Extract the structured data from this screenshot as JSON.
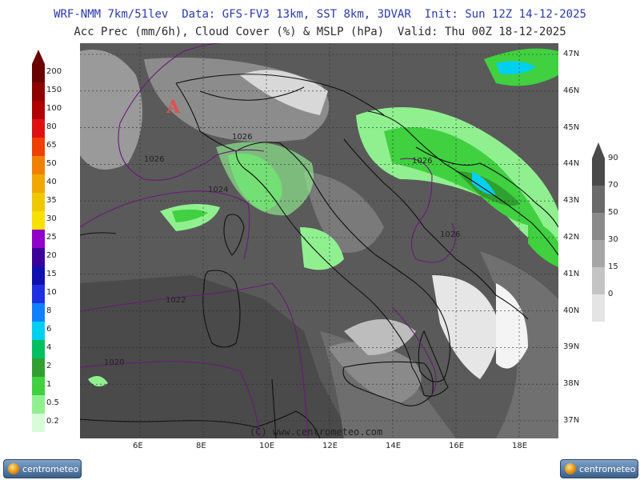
{
  "header": {
    "line1": "WRF-NMM 7km/51lev  Data: GFS-FV3 13km, SST 8km, 3DVAR  Init: Sun 12Z 14-12-2025",
    "line2": "Acc Prec (mm/6h), Cloud Cover (%) & MSLP (hPa)  Valid: Thu 00Z 18-12-2025"
  },
  "map": {
    "lat_labels": [
      "47N",
      "46N",
      "45N",
      "44N",
      "43N",
      "42N",
      "41N",
      "40N",
      "39N",
      "38N",
      "37N"
    ],
    "lon_labels": [
      "6E",
      "8E",
      "10E",
      "12E",
      "14E",
      "16E",
      "18E"
    ],
    "isobars": [
      "1026",
      "1026",
      "1024",
      "1022",
      "1020",
      "1026",
      "1026"
    ],
    "high_marker": "A",
    "credit": "(C) www.centrometeo.com"
  },
  "precip_scale": {
    "ticks": [
      "200",
      "150",
      "100",
      "80",
      "65",
      "50",
      "40",
      "35",
      "30",
      "25",
      "20",
      "15",
      "10",
      "8",
      "6",
      "4",
      "2",
      "1",
      "0.5",
      "0.2"
    ],
    "colors": [
      "#6a0000",
      "#8e0000",
      "#b00000",
      "#e01010",
      "#f04000",
      "#f08000",
      "#f0a800",
      "#f0c800",
      "#f8e000",
      "#9000c8",
      "#3a009a",
      "#1010b0",
      "#2030e0",
      "#1080ff",
      "#00d0f0",
      "#00c060",
      "#30a030",
      "#40d040",
      "#90f090",
      "#d8fcd8"
    ]
  },
  "cloud_scale": {
    "ticks": [
      "90",
      "70",
      "50",
      "30",
      "15",
      "0"
    ],
    "colors": [
      "#4a4a4a",
      "#6a6a6a",
      "#8a8a8a",
      "#a6a6a6",
      "#c4c4c4",
      "#e4e4e4"
    ]
  },
  "logos": {
    "left": "centrometeo",
    "right": "centrometeo"
  }
}
